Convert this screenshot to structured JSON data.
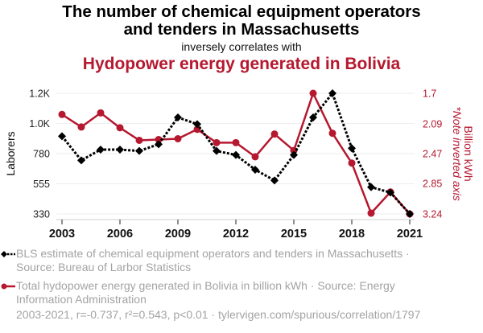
{
  "header": {
    "title": "The number of chemical equipment operators and tenders in Massachusetts",
    "title_line1": "The number of chemical equipment operators",
    "title_line2": "and tenders in Massachusetts",
    "connector": "inversely correlates with",
    "title2": "Hydopower energy generated in Bolivia"
  },
  "legend": {
    "series1": "BLS estimate of chemical equipment operators and tenders in Massachusetts · Source: Bureau of Larbor Statistics",
    "series1_line1": "BLS estimate of chemical equipment operators and tenders in Massachusetts ·",
    "series1_line2": "Source: Bureau of Larbor Statistics",
    "series2": "Total hydopower energy generated in Bolivia in billion kWh · Source: Energy Information Administration",
    "series2_line1": "Total hydopower energy generated in Bolivia in billion kWh · Source: Energy",
    "series2_line2": "Information Administration"
  },
  "footer": "2003-2021, r=-0.737, r²=0.543, p<0.01 · tylervigen.com/spurious/correlation/1797",
  "colors": {
    "series1": "#000000",
    "series2": "#b5182f",
    "grid": "#eeeeee",
    "legend_text": "#a3a3a3"
  },
  "chart_data": {
    "type": "line",
    "title": "The number of chemical equipment operators and tenders in Massachusetts inversely correlates with Hydopower energy generated in Bolivia",
    "x": [
      2003,
      2004,
      2005,
      2006,
      2007,
      2008,
      2009,
      2010,
      2011,
      2012,
      2013,
      2014,
      2015,
      2016,
      2017,
      2018,
      2019,
      2020,
      2021
    ],
    "x_ticks": [
      "2003",
      "2006",
      "2009",
      "2012",
      "2015",
      "2018",
      "2021"
    ],
    "x_tick_values": [
      2003,
      2006,
      2009,
      2012,
      2015,
      2018,
      2021
    ],
    "xlim": [
      2003,
      2021
    ],
    "grid": true,
    "legend_placement": "bottom",
    "y_left": {
      "label": "Laborers",
      "ticks": [
        "330",
        "555",
        "780",
        "1.0K",
        "1.2K"
      ],
      "tick_values": [
        330,
        555,
        780,
        1005,
        1230
      ],
      "ylim": [
        330,
        1230
      ],
      "inverted": false
    },
    "y_right": {
      "label": "Billion kWh",
      "note": "*Note inverted axis",
      "ticks": [
        "1.7",
        "2.09",
        "2.47",
        "2.85",
        "3.24"
      ],
      "tick_values": [
        1.7,
        2.09,
        2.47,
        2.85,
        3.24
      ],
      "ylim": [
        1.7,
        3.24
      ],
      "inverted": true
    },
    "series": [
      {
        "name": "BLS estimate of chemical equipment operators and tenders in Massachusetts",
        "axis": "left",
        "style": "dotted-diamond",
        "color": "#000000",
        "values": [
          910,
          730,
          810,
          810,
          800,
          850,
          1050,
          1000,
          800,
          770,
          660,
          580,
          770,
          1050,
          1230,
          820,
          530,
          490,
          330
        ]
      },
      {
        "name": "Total hydopower energy generated in Bolivia in billion kWh",
        "axis": "right",
        "style": "solid-circle",
        "color": "#b5182f",
        "values": [
          1.97,
          2.13,
          1.95,
          2.14,
          2.3,
          2.29,
          2.28,
          2.16,
          2.33,
          2.33,
          2.51,
          2.22,
          2.43,
          1.7,
          2.21,
          2.59,
          3.23,
          2.96,
          3.24
        ]
      }
    ]
  }
}
